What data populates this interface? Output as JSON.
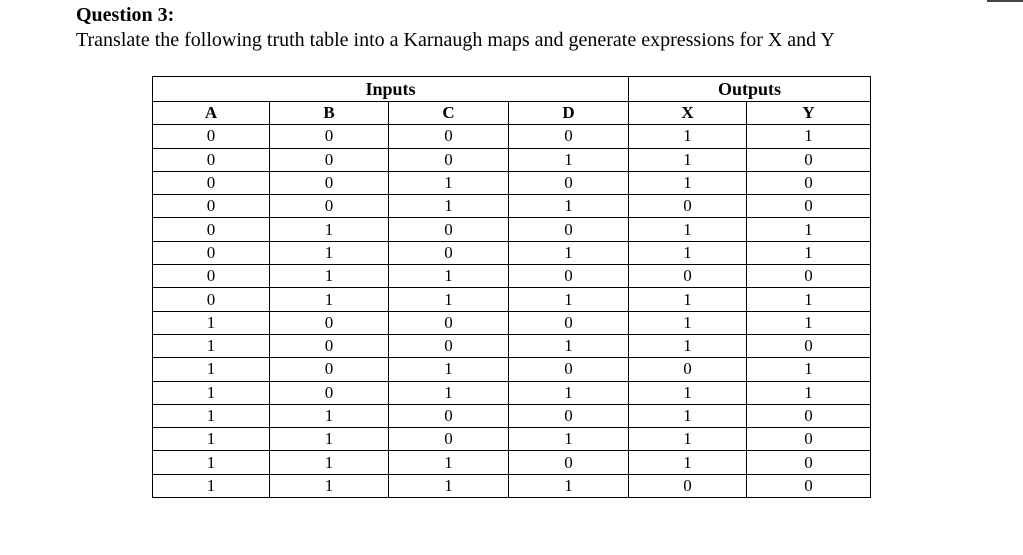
{
  "question": {
    "heading": "Question 3:",
    "instruction": "Translate the following truth table into a Karnaugh maps and generate expressions for X and Y"
  },
  "table": {
    "group_headers": {
      "inputs": "Inputs",
      "outputs": "Outputs"
    },
    "column_headers": [
      "A",
      "B",
      "C",
      "D",
      "X",
      "Y"
    ],
    "rows": [
      [
        "0",
        "0",
        "0",
        "0",
        "1",
        "1"
      ],
      [
        "0",
        "0",
        "0",
        "1",
        "1",
        "0"
      ],
      [
        "0",
        "0",
        "1",
        "0",
        "1",
        "0"
      ],
      [
        "0",
        "0",
        "1",
        "1",
        "0",
        "0"
      ],
      [
        "0",
        "1",
        "0",
        "0",
        "1",
        "1"
      ],
      [
        "0",
        "1",
        "0",
        "1",
        "1",
        "1"
      ],
      [
        "0",
        "1",
        "1",
        "0",
        "0",
        "0"
      ],
      [
        "0",
        "1",
        "1",
        "1",
        "1",
        "1"
      ],
      [
        "1",
        "0",
        "0",
        "0",
        "1",
        "1"
      ],
      [
        "1",
        "0",
        "0",
        "1",
        "1",
        "0"
      ],
      [
        "1",
        "0",
        "1",
        "0",
        "0",
        "1"
      ],
      [
        "1",
        "0",
        "1",
        "1",
        "1",
        "1"
      ],
      [
        "1",
        "1",
        "0",
        "0",
        "1",
        "0"
      ],
      [
        "1",
        "1",
        "0",
        "1",
        "1",
        "0"
      ],
      [
        "1",
        "1",
        "1",
        "0",
        "1",
        "0"
      ],
      [
        "1",
        "1",
        "1",
        "1",
        "0",
        "0"
      ]
    ]
  }
}
